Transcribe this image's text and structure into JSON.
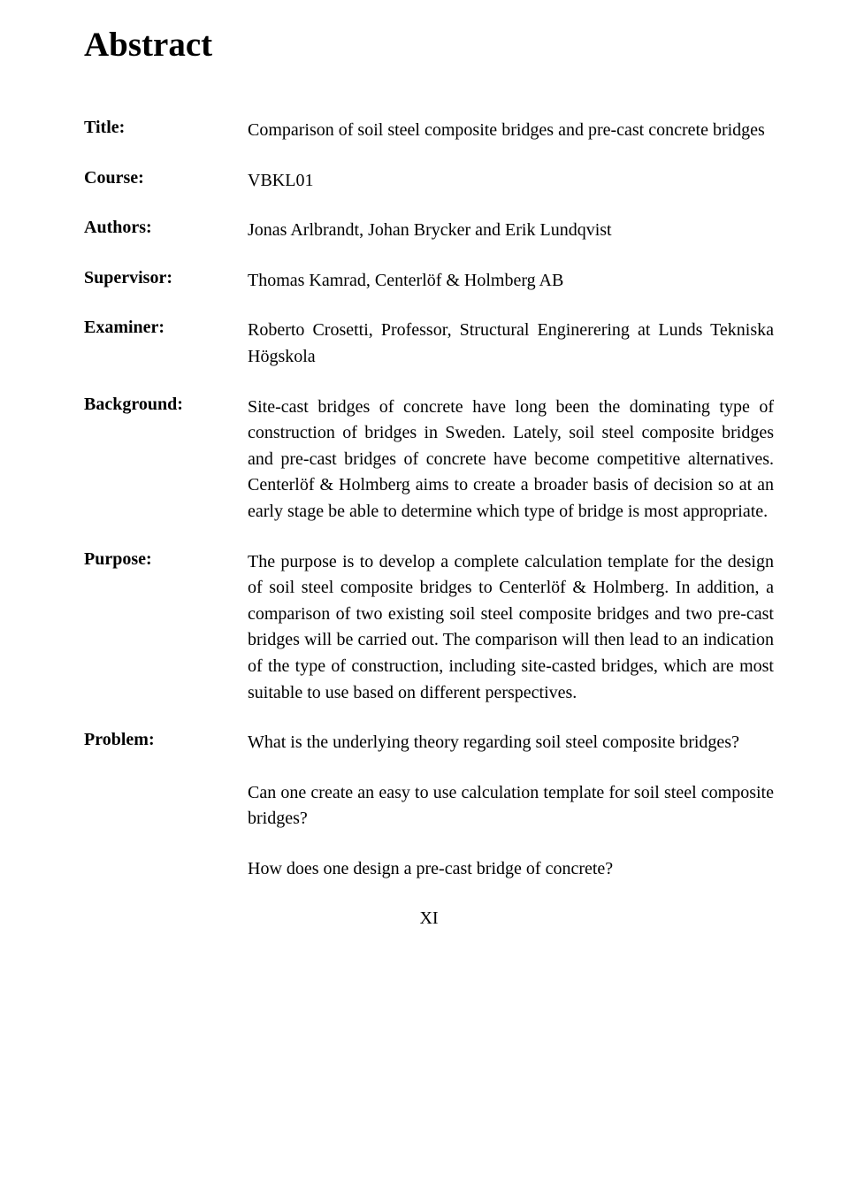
{
  "heading": "Abstract",
  "rows": [
    {
      "label": "Title:",
      "paragraphs": [
        "Comparison of soil steel composite bridges and pre-cast concrete bridges"
      ]
    },
    {
      "label": "Course:",
      "paragraphs": [
        "VBKL01"
      ]
    },
    {
      "label": "Authors:",
      "paragraphs": [
        "Jonas Arlbrandt, Johan Brycker and Erik Lundqvist"
      ]
    },
    {
      "label": "Supervisor:",
      "paragraphs": [
        "Thomas Kamrad, Centerlöf & Holmberg AB"
      ]
    },
    {
      "label": "Examiner:",
      "paragraphs": [
        "Roberto Crosetti, Professor, Structural Enginerering at Lunds Tekniska Högskola"
      ]
    },
    {
      "label": "Background:",
      "paragraphs": [
        "Site-cast bridges of concrete have long been the dominating type of construction of bridges in Sweden. Lately, soil steel composite bridges and pre-cast bridges of concrete have become competitive alternatives. Centerlöf & Holmberg aims to create a broader basis of decision so at an early stage be able to determine which type of bridge is most appropriate."
      ]
    },
    {
      "label": "Purpose:",
      "paragraphs": [
        "The purpose is to develop a complete calculation template for the design of soil steel composite bridges to Centerlöf & Holmberg. In addition, a comparison of two existing soil steel composite bridges and two pre-cast bridges will be carried out. The comparison will then lead to an indication of the type of construction, including site-casted bridges, which are most suitable to use based on different perspectives."
      ]
    },
    {
      "label": "Problem:",
      "paragraphs": [
        "What is the underlying theory regarding soil steel composite bridges?",
        "Can one create an easy to use calculation template for soil steel composite bridges?",
        "How does one design a pre-cast bridge of concrete?"
      ]
    }
  ],
  "page_num": "XI"
}
